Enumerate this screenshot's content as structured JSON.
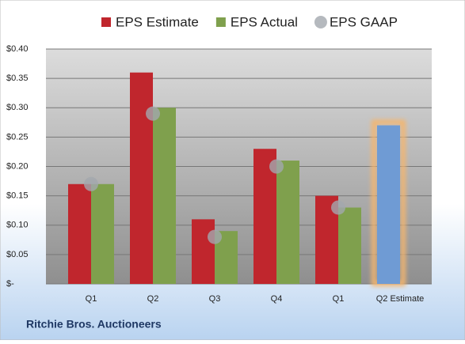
{
  "chart_data": {
    "type": "bar",
    "title": "Ritchie Bros. Auctioneers",
    "categories": [
      "Q1",
      "Q2",
      "Q3",
      "Q4",
      "Q1",
      "Q2 Estimate"
    ],
    "series": [
      {
        "name": "EPS Estimate",
        "color": "#c0262d",
        "values": [
          0.17,
          0.36,
          0.11,
          0.23,
          0.15,
          0.27
        ]
      },
      {
        "name": "EPS Actual",
        "color": "#7fa04d",
        "values": [
          0.17,
          0.3,
          0.09,
          0.21,
          0.13,
          null
        ]
      },
      {
        "name": "EPS GAAP",
        "color": "#a3a8ae",
        "values": [
          0.17,
          0.29,
          0.08,
          0.2,
          0.13,
          null
        ],
        "style": "dot"
      }
    ],
    "highlight": {
      "series": 0,
      "index": 5,
      "color": "#6f9bd4",
      "glow": "#f4b56e"
    },
    "ylim": [
      0,
      0.4
    ],
    "yticks": [
      {
        "value": 0,
        "label": "$-"
      },
      {
        "value": 0.05,
        "label": "$0.05"
      },
      {
        "value": 0.1,
        "label": "$0.10"
      },
      {
        "value": 0.15,
        "label": "$0.15"
      },
      {
        "value": 0.2,
        "label": "$0.20"
      },
      {
        "value": 0.25,
        "label": "$0.25"
      },
      {
        "value": 0.3,
        "label": "$0.30"
      },
      {
        "value": 0.35,
        "label": "$0.35"
      },
      {
        "value": 0.4,
        "label": "$0.40"
      }
    ],
    "grid": true
  }
}
